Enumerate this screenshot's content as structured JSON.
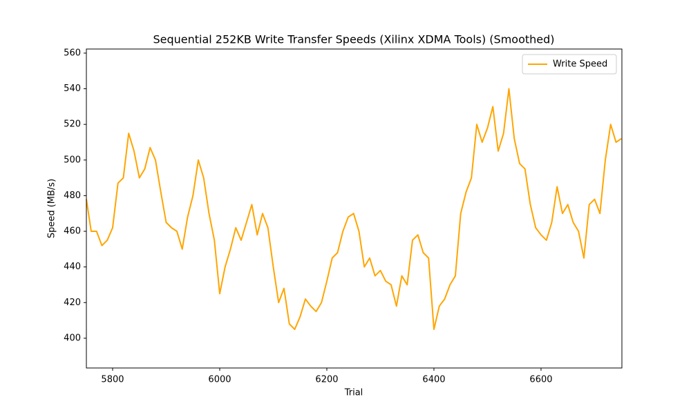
{
  "chart_data": {
    "type": "line",
    "title": "Sequential 252KB Write Transfer Speeds (Xilinx XDMA Tools) (Smoothed)",
    "x_label": "Trial",
    "y_label": "Speed (MB/s)",
    "x": [
      5751,
      5760,
      5770,
      5780,
      5790,
      5800,
      5810,
      5820,
      5830,
      5840,
      5850,
      5860,
      5870,
      5880,
      5890,
      5900,
      5910,
      5920,
      5930,
      5940,
      5950,
      5960,
      5970,
      5980,
      5990,
      6000,
      6010,
      6020,
      6030,
      6040,
      6050,
      6060,
      6070,
      6080,
      6090,
      6100,
      6110,
      6120,
      6130,
      6140,
      6150,
      6160,
      6170,
      6180,
      6190,
      6200,
      6210,
      6220,
      6230,
      6240,
      6250,
      6260,
      6270,
      6280,
      6290,
      6300,
      6310,
      6320,
      6330,
      6340,
      6350,
      6360,
      6370,
      6380,
      6390,
      6400,
      6410,
      6420,
      6430,
      6440,
      6450,
      6460,
      6470,
      6480,
      6490,
      6500,
      6510,
      6520,
      6530,
      6540,
      6550,
      6560,
      6570,
      6580,
      6590,
      6600,
      6610,
      6620,
      6630,
      6640,
      6650,
      6660,
      6670,
      6680,
      6690,
      6700,
      6710,
      6720,
      6730,
      6740,
      6750
    ],
    "series": [
      {
        "name": "Write Speed",
        "color": "#ffa500",
        "values": [
          478,
          460,
          460,
          452,
          455,
          462,
          487,
          490,
          515,
          505,
          490,
          495,
          507,
          500,
          482,
          465,
          462,
          460,
          450,
          468,
          480,
          500,
          490,
          470,
          455,
          425,
          440,
          450,
          462,
          455,
          465,
          475,
          458,
          470,
          462,
          440,
          420,
          428,
          408,
          405,
          412,
          422,
          418,
          415,
          420,
          432,
          445,
          448,
          460,
          468,
          470,
          460,
          440,
          445,
          435,
          438,
          432,
          430,
          418,
          435,
          430,
          455,
          458,
          448,
          445,
          405,
          418,
          422,
          430,
          435,
          470,
          482,
          490,
          520,
          510,
          518,
          530,
          505,
          515,
          540,
          512,
          498,
          495,
          475,
          462,
          458,
          455,
          465,
          485,
          470,
          475,
          465,
          460,
          445,
          475,
          478,
          470,
          500,
          520,
          510,
          512
        ]
      }
    ],
    "xlim": [
      5751,
      6751
    ],
    "ylim": [
      383.3,
      562.3
    ],
    "xticks": [
      5800,
      6000,
      6200,
      6400,
      6600
    ],
    "yticks": [
      400,
      420,
      440,
      460,
      480,
      500,
      520,
      540,
      560
    ],
    "legend": "upper right"
  }
}
